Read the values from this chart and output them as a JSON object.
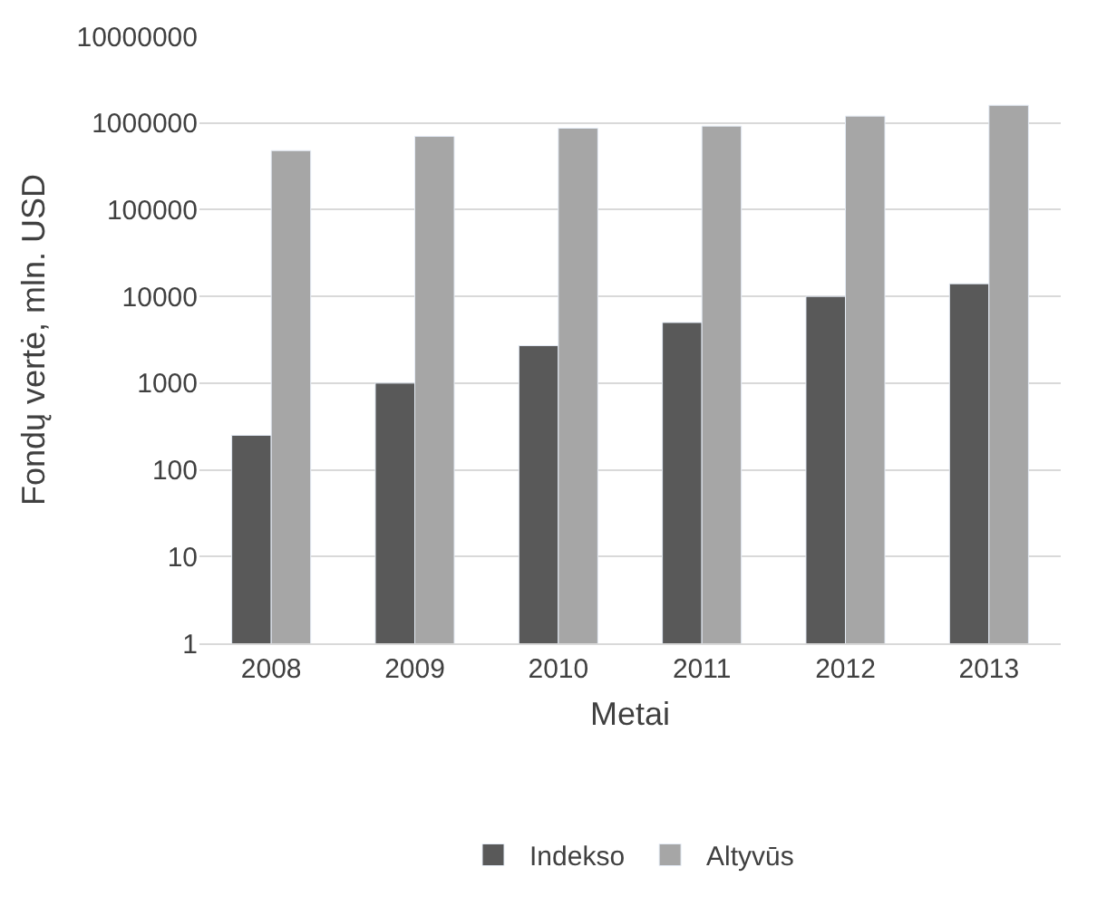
{
  "chart_data": {
    "type": "bar",
    "xlabel": "Metai",
    "ylabel": "Fondų vertė, mln. USD",
    "categories": [
      "2008",
      "2009",
      "2010",
      "2011",
      "2012",
      "2013"
    ],
    "series": [
      {
        "name": "Indekso",
        "color": "#595959",
        "values": [
          250,
          1000,
          2700,
          5000,
          10000,
          14000
        ]
      },
      {
        "name": "Altyvūs",
        "color": "#a6a6a6",
        "values": [
          480000,
          700000,
          870000,
          920000,
          1200000,
          1600000
        ]
      }
    ],
    "log": "y",
    "ylim": [
      1,
      10000000
    ],
    "yticks": [
      1,
      10,
      100,
      1000,
      10000,
      100000,
      1000000,
      10000000
    ],
    "grid": "y",
    "legend": "bottom"
  }
}
